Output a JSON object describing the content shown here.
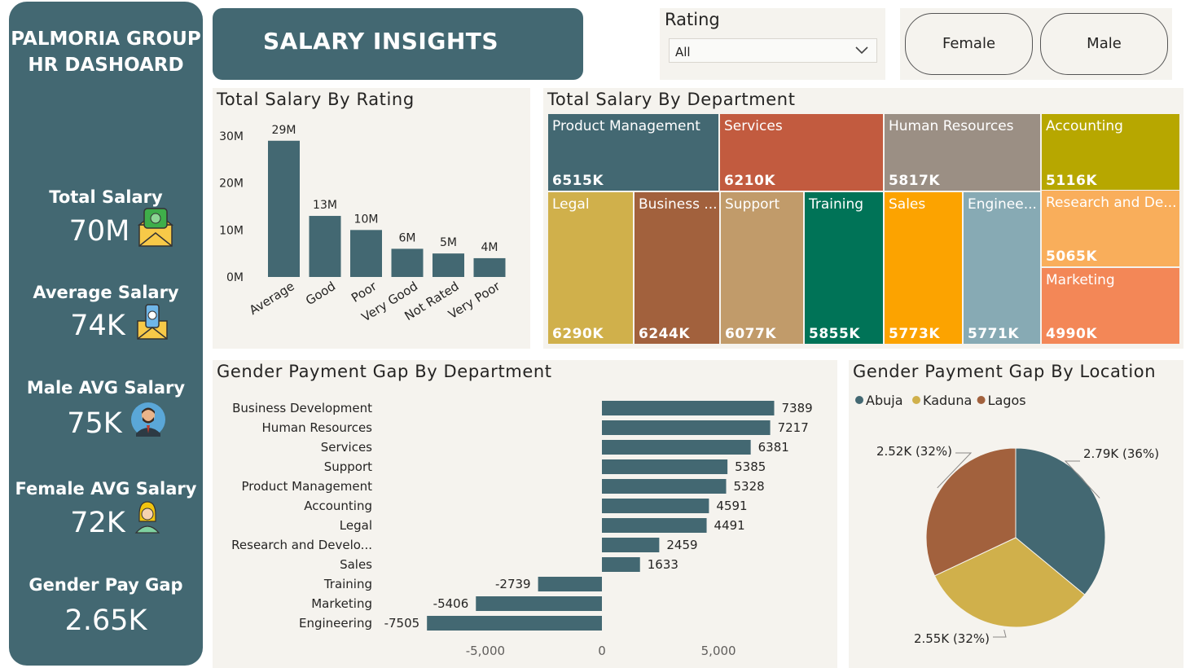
{
  "sidebar": {
    "title_line1": "PALMORIA GROUP",
    "title_line2": "HR DASHOARD",
    "kpis": [
      {
        "label": "Total Salary",
        "value": "70M",
        "icon": "money-envelope-icon"
      },
      {
        "label": "Average Salary",
        "value": "74K",
        "icon": "cash-envelope-icon"
      },
      {
        "label": "Male AVG Salary",
        "value": "75K",
        "icon": "male-avatar-icon"
      },
      {
        "label": "Female AVG Salary",
        "value": "72K",
        "icon": "female-avatar-icon"
      },
      {
        "label": "Gender Pay Gap",
        "value": "2.65K",
        "icon": ""
      }
    ]
  },
  "banner": {
    "title": "SALARY INSIGHTS"
  },
  "rating_slicer": {
    "label": "Rating",
    "selected": "All"
  },
  "gender_buttons": {
    "female": "Female",
    "male": "Male"
  },
  "colors": {
    "primary": "#436872",
    "panel": "#f5f3ee"
  },
  "chart_data": [
    {
      "type": "bar",
      "title": "Total Salary By Rating",
      "categories": [
        "Average",
        "Good",
        "Poor",
        "Very Good",
        "Not Rated",
        "Very Poor"
      ],
      "values": [
        29,
        13,
        10,
        6,
        5,
        4
      ],
      "data_labels": [
        "29M",
        "13M",
        "10M",
        "6M",
        "5M",
        "4M"
      ],
      "yticks": [
        "0M",
        "10M",
        "20M",
        "30M"
      ],
      "ylim": [
        0,
        30
      ],
      "color": "#436872"
    },
    {
      "type": "treemap",
      "title": "Total Salary By Department",
      "items": [
        {
          "name": "Product Management",
          "value": "6515K",
          "color": "#436872"
        },
        {
          "name": "Services",
          "value": "6210K",
          "color": "#c25b3f"
        },
        {
          "name": "Human Resources",
          "value": "5817K",
          "color": "#9b8f84"
        },
        {
          "name": "Accounting",
          "value": "5116K",
          "color": "#b7a700"
        },
        {
          "name": "Legal",
          "value": "6290K",
          "color": "#d0b04b"
        },
        {
          "name": "Business ...",
          "value": "6244K",
          "color": "#a2613d"
        },
        {
          "name": "Support",
          "value": "6077K",
          "color": "#c19b6a"
        },
        {
          "name": "Training",
          "value": "5855K",
          "color": "#007357"
        },
        {
          "name": "Sales",
          "value": "5773K",
          "color": "#fca300"
        },
        {
          "name": "Enginee...",
          "value": "5771K",
          "color": "#87aab4"
        },
        {
          "name": "Research and De...",
          "value": "5065K",
          "color": "#f9ae5b"
        },
        {
          "name": "Marketing",
          "value": "4990K",
          "color": "#f38757"
        }
      ]
    },
    {
      "type": "bar",
      "orientation": "horizontal",
      "title": "Gender Payment Gap By Department",
      "categories": [
        "Business Development",
        "Human Resources",
        "Services",
        "Support",
        "Product Management",
        "Accounting",
        "Legal",
        "Research and Develo...",
        "Sales",
        "Training",
        "Marketing",
        "Engineering"
      ],
      "values": [
        7389,
        7217,
        6381,
        5385,
        5328,
        4591,
        4491,
        2459,
        1633,
        -2739,
        -5406,
        -7505
      ],
      "xticks": [
        -5000,
        0,
        5000
      ],
      "xtick_labels": [
        "-5,000",
        "0",
        "5,000"
      ],
      "xlim": [
        -7505,
        7389
      ],
      "color": "#436872"
    },
    {
      "type": "pie",
      "title": "Gender Payment Gap By Location",
      "legend": [
        "Abuja",
        "Kaduna",
        "Lagos"
      ],
      "legend_position": "top-left",
      "slices": [
        {
          "name": "Abuja",
          "value": 36,
          "label": "2.79K (36%)",
          "color": "#436872"
        },
        {
          "name": "Kaduna",
          "value": 32,
          "label": "2.55K (32%)",
          "color": "#d0b04b"
        },
        {
          "name": "Lagos",
          "value": 32,
          "label": "2.52K (32%)",
          "color": "#a2613d"
        }
      ]
    }
  ]
}
